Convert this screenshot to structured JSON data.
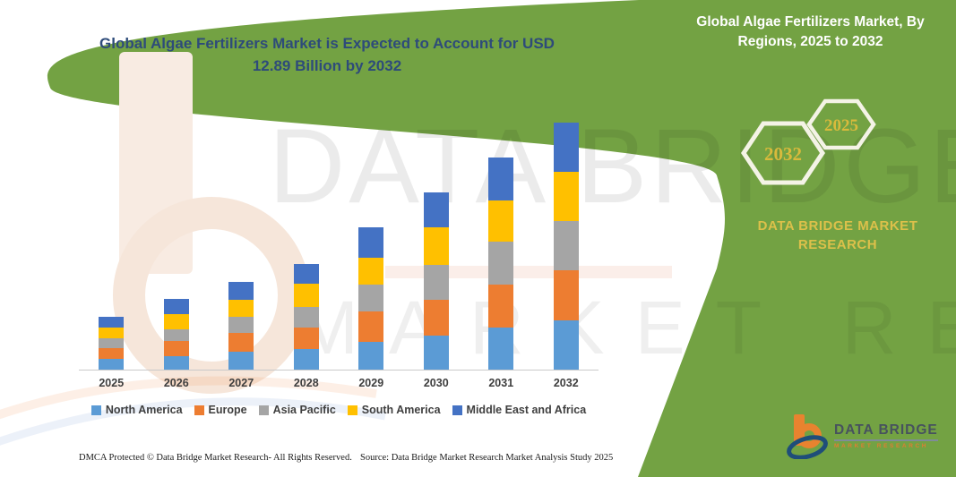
{
  "header": {
    "title": "Global Algae Fertilizers Market is Expected to Account for USD 12.89 Billion by 2032"
  },
  "watermark": {
    "line1": "DATA BRIDGE",
    "line2": "MARKET RESEARCH"
  },
  "chart_data": {
    "type": "bar",
    "stacked": true,
    "title": "Global Algae Fertilizers Market is Expected to Account for USD 12.89 Billion by 2032",
    "unit": "USD Billion",
    "categories": [
      "2025",
      "2026",
      "2027",
      "2028",
      "2029",
      "2030",
      "2031",
      "2032"
    ],
    "series": [
      {
        "name": "North America",
        "color": "#5B9BD5",
        "values": [
          0.56,
          0.7,
          0.95,
          1.08,
          1.45,
          1.79,
          2.19,
          2.58
        ]
      },
      {
        "name": "Europe",
        "color": "#ED7D31",
        "values": [
          0.56,
          0.78,
          0.95,
          1.13,
          1.59,
          1.86,
          2.23,
          2.58
        ]
      },
      {
        "name": "Asia Pacific",
        "color": "#A5A5A5",
        "values": [
          0.51,
          0.62,
          0.86,
          1.08,
          1.4,
          1.79,
          2.24,
          2.57
        ]
      },
      {
        "name": "South America",
        "color": "#FFC000",
        "values": [
          0.56,
          0.81,
          0.86,
          1.18,
          1.4,
          1.98,
          2.18,
          2.58
        ]
      },
      {
        "name": "Middle East and Africa",
        "color": "#4472C4",
        "values": [
          0.57,
          0.79,
          0.96,
          1.04,
          1.59,
          1.8,
          2.22,
          2.58
        ]
      }
    ],
    "totals": [
      2.76,
      3.7,
      4.58,
      5.51,
      7.43,
      9.22,
      11.06,
      12.89
    ],
    "xlabel": "",
    "ylabel": "",
    "ylim": [
      0,
      14
    ],
    "grid": false,
    "legend_position": "bottom"
  },
  "panel": {
    "title": "Global Algae Fertilizers Market, By Regions, 2025 to 2032",
    "hexagon_large_year": "2032",
    "hexagon_small_year": "2025",
    "brand_line1": "DATA BRIDGE MARKET",
    "brand_line2": "RESEARCH",
    "colors": {
      "background": "#73A243",
      "hexagon_stroke": "#F4F3E6",
      "gold": "#D9BA3C"
    }
  },
  "logo": {
    "name": "DATA BRIDGE",
    "tagline": "MARKET RESEARCH"
  },
  "footer": {
    "left": "DMCA Protected © Data Bridge Market Research-  All Rights Reserved.",
    "right": "Source: Data Bridge Market Research  Market Analysis Study 2025"
  }
}
